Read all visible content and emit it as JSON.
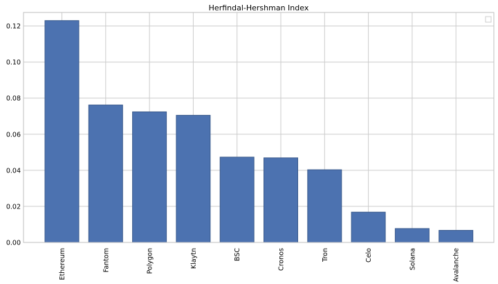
{
  "chart_data": {
    "type": "bar",
    "title": "Herfindal-Hershman Index",
    "xlabel": "",
    "ylabel": "",
    "categories": [
      "Ethereum",
      "Fantom",
      "Polygon",
      "Klaytn",
      "BSC",
      "Cronos",
      "Tron",
      "Celo",
      "Solana",
      "Avalanche"
    ],
    "values": [
      0.123,
      0.0762,
      0.0724,
      0.0705,
      0.0473,
      0.0469,
      0.0403,
      0.0168,
      0.0077,
      0.0067
    ],
    "ylim": [
      0,
      0.1275
    ],
    "yticks": [
      "0.00",
      "0.02",
      "0.04",
      "0.06",
      "0.08",
      "0.10",
      "0.12"
    ],
    "grid": true,
    "legend": "top-right (empty)",
    "bar_color": "#4c72b0",
    "bar_edge_color": "#3a5a8c"
  }
}
